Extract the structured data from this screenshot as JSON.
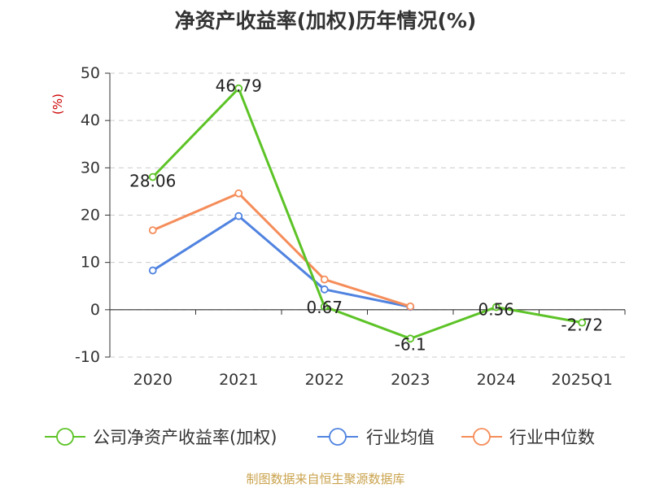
{
  "title": "净资产收益率(加权)历年情况(%)",
  "source_note": "制图数据来自恒生聚源数据库",
  "colors": {
    "company": "#5cc326",
    "industry_avg": "#5083e0",
    "industry_median": "#f58d5a",
    "axis": "#333333",
    "grid": "#cccccc",
    "ylabel": "#cc0000"
  },
  "chart_data": {
    "type": "line",
    "title": "净资产收益率(加权)历年情况(%)",
    "ylabel": "(%)",
    "ylim": [
      -10,
      50
    ],
    "yticks": [
      50,
      40,
      30,
      20,
      10,
      0,
      -10
    ],
    "categories": [
      "2020",
      "2021",
      "2022",
      "2023",
      "2024",
      "2025Q1"
    ],
    "grid": "dashed horizontal",
    "legend_position": "bottom",
    "series": [
      {
        "name": "公司净资产收益率(加权)",
        "color_key": "company",
        "values": [
          28.06,
          46.79,
          0.67,
          -6.1,
          0.56,
          -2.72
        ],
        "labels": [
          "28.06",
          "46.79",
          "0.67",
          "-6.1",
          "0.56",
          "-2.72"
        ]
      },
      {
        "name": "行业均值",
        "color_key": "industry_avg",
        "values": [
          8.3,
          19.8,
          4.3,
          0.6,
          null,
          null
        ]
      },
      {
        "name": "行业中位数",
        "color_key": "industry_median",
        "values": [
          16.8,
          24.6,
          6.4,
          0.7,
          null,
          null
        ]
      }
    ]
  }
}
